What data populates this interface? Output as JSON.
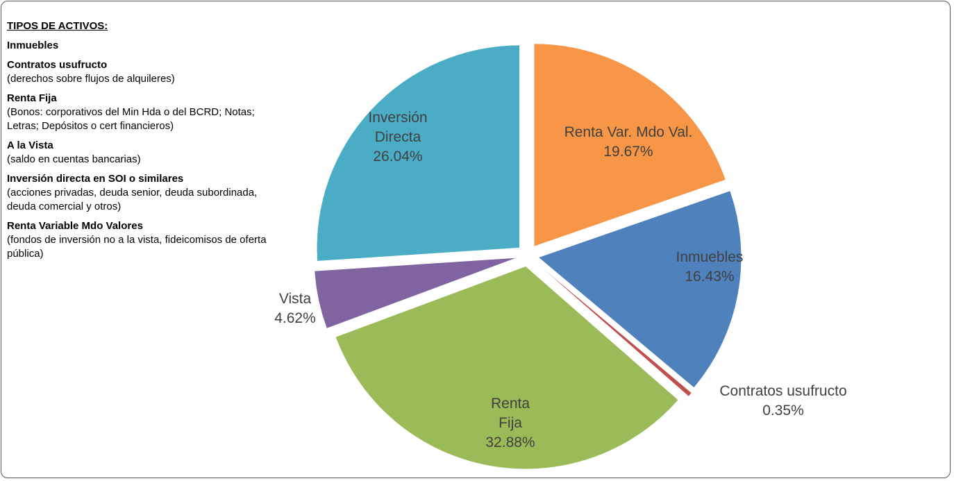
{
  "panel": {
    "title": "TIPOS DE ACTIVOS:",
    "items": [
      {
        "name": "Inmuebles"
      },
      {
        "name": "Contratos usufructo",
        "description": "(derechos sobre flujos de alquileres)"
      },
      {
        "name": "Renta Fija",
        "description": "(Bonos: corporativos del Min Hda o del BCRD; Notas; Letras; Depósitos o cert financieros)"
      },
      {
        "name": "A la Vista",
        "description": "(saldo en cuentas bancarias)"
      },
      {
        "name": "Inversión directa en SOI o similares",
        "description": "(acciones privadas, deuda senior, deuda subordinada, deuda comercial y otros)"
      },
      {
        "name": "Renta Variable Mdo Valores",
        "description": "(fondos de inversión no a la vista, fideicomisos de oferta pública)"
      }
    ]
  },
  "chart_data": {
    "type": "pie",
    "categories": [
      "Renta Var. Mdo Val.",
      "Inmuebles",
      "Contratos usufructo",
      "Renta Fija",
      "Vista",
      "Inversión Directa"
    ],
    "values": [
      19.67,
      16.43,
      0.35,
      32.88,
      4.62,
      26.04
    ],
    "value_labels": [
      "19.67%",
      "16.43%",
      "0.35%",
      "32.88%",
      "4.62%",
      "26.04%"
    ],
    "colors": [
      "#f79646",
      "#4f81bd",
      "#c0504d",
      "#9bbb59",
      "#8064a2",
      "#4bacc6"
    ]
  }
}
